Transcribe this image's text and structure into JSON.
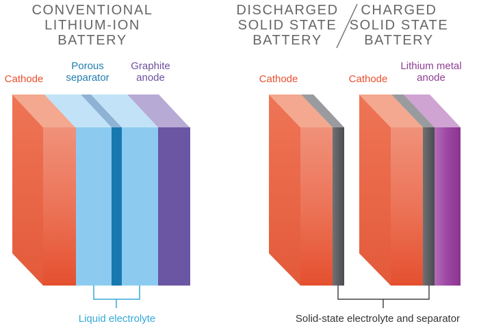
{
  "headings": {
    "conventional": "CONVENTIONAL\nLITHIUM-ION BATTERY",
    "discharged": "DISCHARGED\nSOLID STATE\nBATTERY",
    "charged": "CHARGED\nSOLID STATE\nBATTERY"
  },
  "labels": {
    "cathode_left": "Cathode",
    "porous_separator": "Porous\nseparator",
    "graphite_anode": "Graphite\nanode",
    "liquid_electrolyte": "Liquid electrolyte",
    "cathode_discharged": "Cathode",
    "cathode_charged": "Cathode",
    "lithium_metal_anode": "Lithium metal\nanode",
    "solid_state_electrolyte": "Solid-state electrolyte and separator"
  },
  "colors": {
    "cathode": "#ec6a4a",
    "electrolyte": "#8ccbef",
    "separator": "#1779b0",
    "graphite": "#6b56a3",
    "solid_electrolyte": "#5d5f62",
    "lithium_metal": "#9b42a0",
    "heading": "#666666"
  }
}
